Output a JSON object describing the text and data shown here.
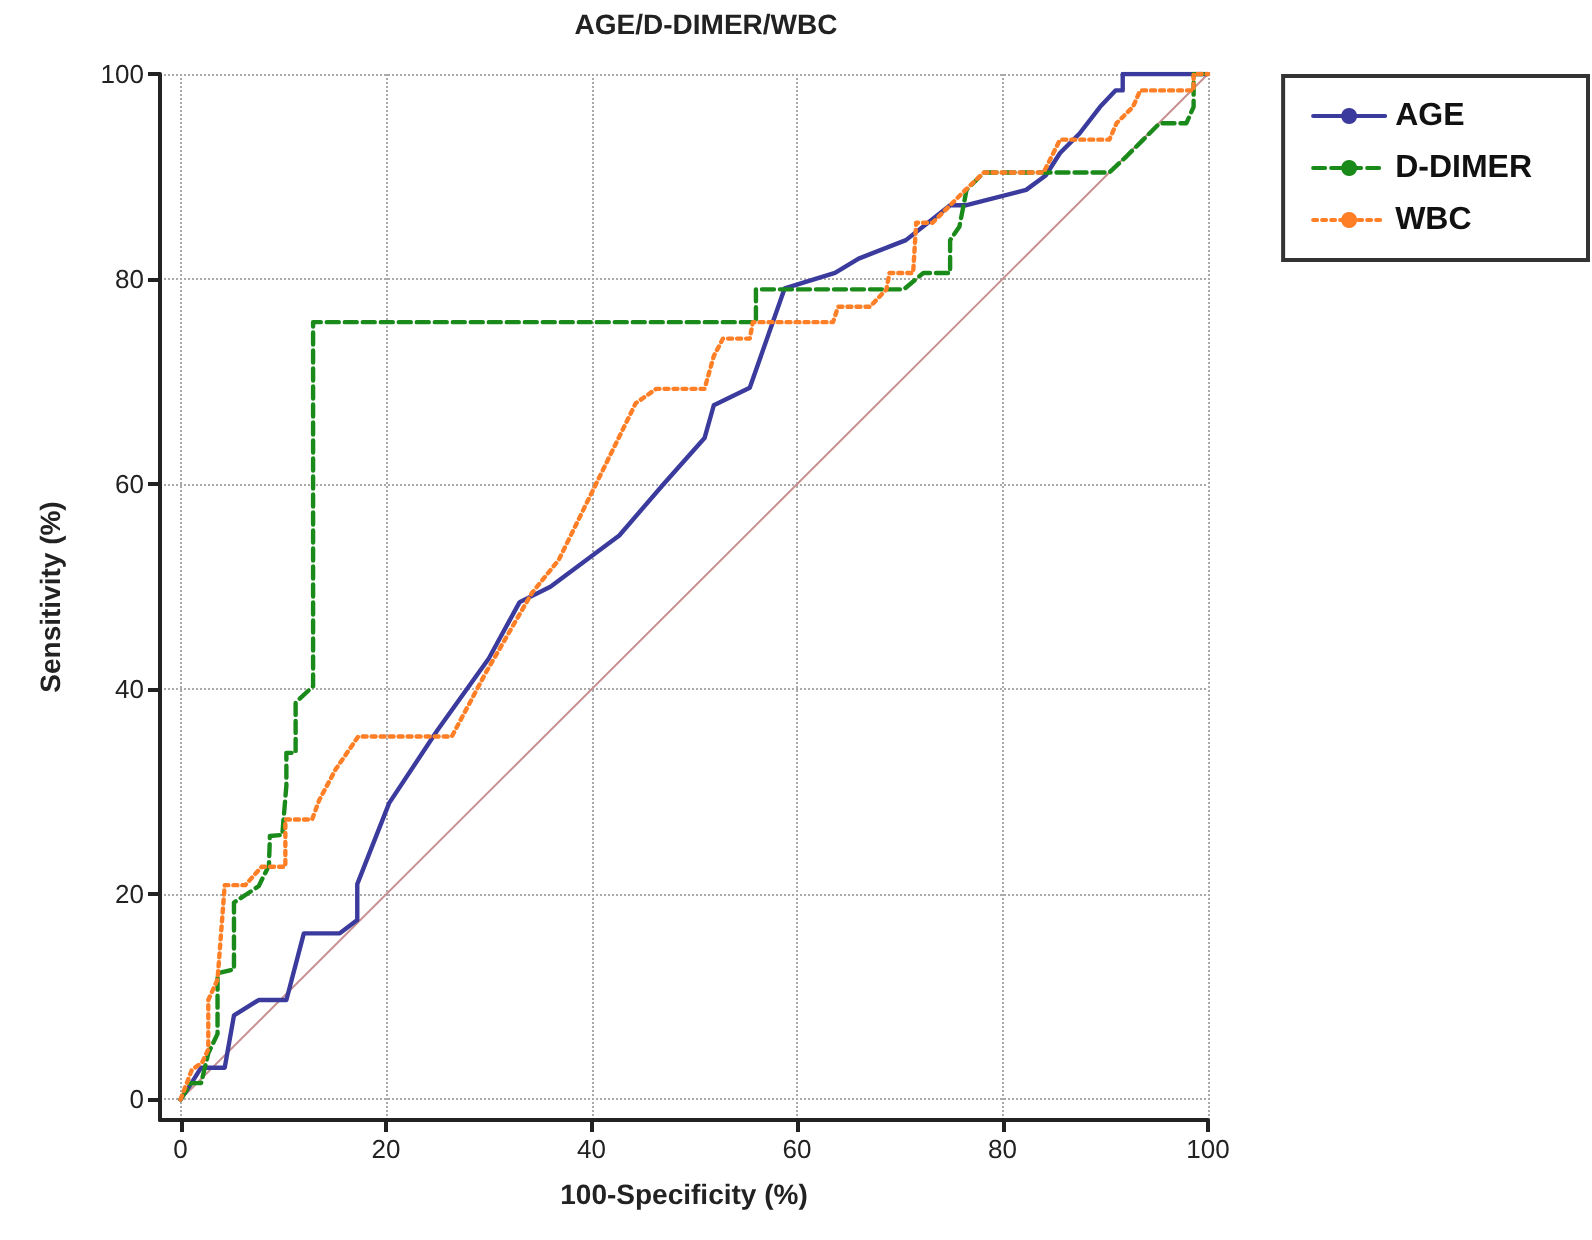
{
  "chart_data": {
    "type": "line",
    "title": "AGE/D-DIMER/WBC",
    "xlabel": "100-Specificity (%)",
    "ylabel": "Sensitivity (%)",
    "xlim": [
      -2,
      100
    ],
    "ylim": [
      -2,
      100
    ],
    "xticks": [
      0,
      20,
      40,
      60,
      80,
      100
    ],
    "yticks": [
      0,
      20,
      40,
      60,
      80,
      100
    ],
    "grid": true,
    "legend": "top right",
    "marker": "none",
    "series": [
      {
        "name": "AGE",
        "color": "#3b3b9e",
        "line_style": "solid",
        "x": [
          0,
          1,
          2,
          4.3,
          5.2,
          7.6,
          10.3,
          12,
          15.5,
          17.2,
          17.2,
          20.3,
          25,
          30,
          33,
          36,
          42.7,
          47,
          51,
          51.9,
          55.4,
          58.8,
          63.7,
          66,
          70.6,
          74.9,
          76.4,
          82.3,
          84.2,
          85.6,
          87.5,
          89.5,
          91,
          91.7,
          91.7,
          100
        ],
        "values": [
          0,
          1.5,
          3.1,
          3.1,
          8.2,
          9.7,
          9.7,
          16.2,
          16.2,
          17.5,
          21,
          28.9,
          36,
          43,
          48.5,
          50,
          55,
          60,
          64.5,
          67.7,
          69.4,
          79.1,
          80.6,
          82,
          83.8,
          87.2,
          87.2,
          88.7,
          90.1,
          92.3,
          94.2,
          96.8,
          98.4,
          98.4,
          100,
          100
        ]
      },
      {
        "name": "D-DIMER",
        "color": "#1a8a1a",
        "line_style": "dashed",
        "x": [
          0,
          1,
          2,
          2.7,
          3.6,
          3.6,
          5.2,
          5.2,
          7.6,
          8.6,
          8.7,
          9.9,
          10.3,
          10.3,
          11.2,
          11.2,
          12.9,
          12.9,
          56,
          56,
          70.4,
          72.3,
          74.9,
          74.9,
          75.8,
          76.5,
          78.2,
          90.4,
          92.1,
          93.7,
          95.3,
          97.9,
          98.6,
          98.6,
          100
        ],
        "values": [
          0,
          1.6,
          1.6,
          4.5,
          6.4,
          12.3,
          12.7,
          19.2,
          20.8,
          22.8,
          25.7,
          25.8,
          30.6,
          33.8,
          33.8,
          38.7,
          40.3,
          75.8,
          75.8,
          79,
          79,
          80.6,
          80.6,
          83.8,
          85.1,
          88.7,
          90.4,
          90.4,
          92,
          93.6,
          95.2,
          95.2,
          96.8,
          100,
          100
        ]
      },
      {
        "name": "WBC",
        "color": "#ff7f27",
        "line_style": "dotted",
        "x": [
          0,
          1.1,
          2.1,
          2.7,
          2.7,
          3.6,
          4.3,
          6.3,
          7.9,
          10.2,
          10.2,
          12.8,
          13.5,
          15.1,
          17.3,
          26.4,
          29.7,
          34.2,
          36.8,
          44.3,
          46.3,
          51,
          51.9,
          52.8,
          55.4,
          55.7,
          63.5,
          64,
          67.1,
          68.7,
          69,
          71.3,
          71.6,
          73.2,
          74.9,
          76.4,
          78.2,
          84,
          85.6,
          90.4,
          91.1,
          92.7,
          93.4,
          98.6,
          98.6,
          100
        ],
        "values": [
          0,
          2.9,
          3.6,
          4.9,
          9.7,
          11.7,
          20.9,
          20.9,
          22.7,
          22.7,
          27.3,
          27.3,
          29.2,
          32.2,
          35.4,
          35.4,
          41.6,
          49.4,
          52.6,
          67.9,
          69.3,
          69.3,
          72.5,
          74.2,
          74.2,
          75.8,
          75.8,
          77.3,
          77.3,
          79,
          80.6,
          80.6,
          85.5,
          85.5,
          87.2,
          88.7,
          90.4,
          90.4,
          93.6,
          93.6,
          95.2,
          96.8,
          98.4,
          98.4,
          100,
          100
        ]
      },
      {
        "color": "#c89090",
        "line_style": "solid",
        "x": [
          0,
          100
        ],
        "values": [
          0,
          100
        ]
      }
    ]
  }
}
